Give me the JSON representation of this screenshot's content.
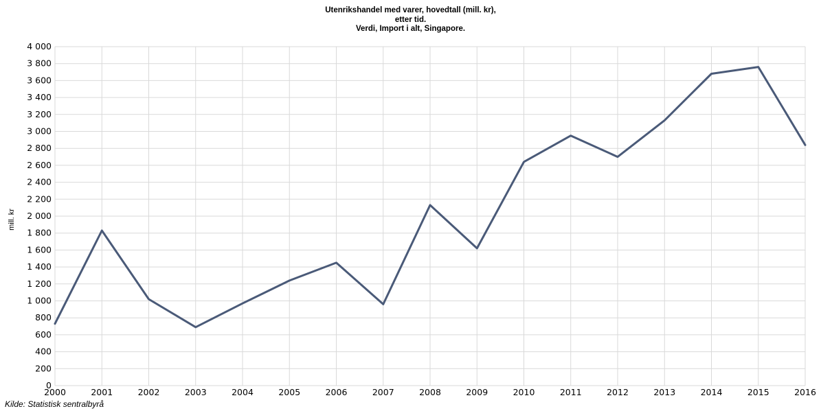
{
  "chart_data": {
    "type": "line",
    "title": [
      "Utenrikshandel med varer, hovedtall (mill. kr),",
      "etter tid.",
      "Verdi, Import i alt, Singapore."
    ],
    "ylabel": "mill. kr",
    "xlabel": "",
    "ylim": [
      0,
      4000
    ],
    "ytick_step": 200,
    "ytick_labels": [
      "0",
      "200",
      "400",
      "600",
      "800",
      "1 000",
      "1 200",
      "1 400",
      "1 600",
      "1 800",
      "2 000",
      "2 200",
      "2 400",
      "2 600",
      "2 800",
      "3 000",
      "3 200",
      "3 400",
      "3 600",
      "3 800",
      "4 000"
    ],
    "x": [
      "2000",
      "2001",
      "2002",
      "2003",
      "2004",
      "2005",
      "2006",
      "2007",
      "2008",
      "2009",
      "2010",
      "2011",
      "2012",
      "2013",
      "2014",
      "2015",
      "2016"
    ],
    "series": [
      {
        "name": "",
        "color": "#4a5a78",
        "values": [
          730,
          1830,
          1020,
          690,
          970,
          1240,
          1450,
          960,
          2130,
          1620,
          2640,
          2950,
          2700,
          3130,
          3680,
          3760,
          2840
        ]
      }
    ],
    "grid": true,
    "source": "Kilde: Statistisk sentralbyrå"
  }
}
